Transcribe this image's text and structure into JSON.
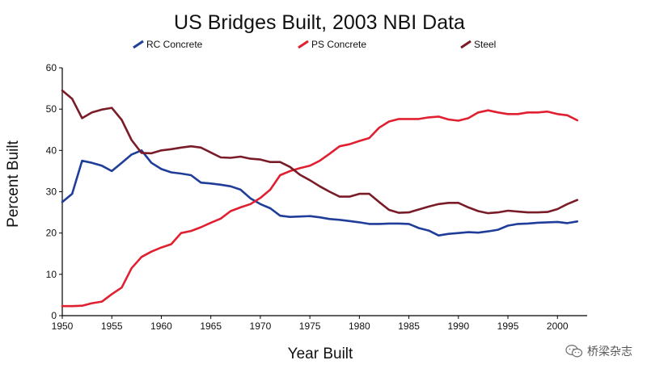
{
  "chart_data": {
    "type": "line",
    "title": "US Bridges Built, 2003 NBI Data",
    "xlabel": "Year Built",
    "ylabel": "Percent Built",
    "xlim": [
      1950,
      2003
    ],
    "ylim": [
      0,
      60
    ],
    "xticks": [
      1950,
      1955,
      1960,
      1965,
      1970,
      1975,
      1980,
      1985,
      1990,
      1995,
      2000
    ],
    "yticks": [
      0,
      10,
      20,
      30,
      40,
      50,
      60
    ],
    "legend_position": "top",
    "series": [
      {
        "name": "RC Concrete",
        "color": "#1f3d99",
        "x": [
          1950,
          1951,
          1952,
          1953,
          1954,
          1955,
          1956,
          1957,
          1958,
          1959,
          1960,
          1961,
          1962,
          1963,
          1964,
          1965,
          1966,
          1967,
          1968,
          1969,
          1970,
          1971,
          1972,
          1973,
          1974,
          1975,
          1976,
          1977,
          1978,
          1979,
          1980,
          1981,
          1982,
          1983,
          1984,
          1985,
          1986,
          1987,
          1988,
          1989,
          1990,
          1991,
          1992,
          1993,
          1994,
          1995,
          1996,
          1997,
          1998,
          1999,
          2000,
          2001,
          2002
        ],
        "values": [
          27.5,
          29.5,
          37.5,
          37,
          36.3,
          35,
          37,
          39,
          40,
          37,
          35.5,
          34.7,
          34.4,
          34,
          32.2,
          32,
          31.7,
          31.3,
          30.5,
          28.4,
          27,
          26,
          24.2,
          23.9,
          24,
          24.1,
          23.8,
          23.4,
          23.2,
          22.9,
          22.6,
          22.2,
          22.2,
          22.3,
          22.3,
          22.2,
          21.2,
          20.6,
          19.4,
          19.8,
          20,
          20.2,
          20.1,
          20.4,
          20.8,
          21.8,
          22.2,
          22.3,
          22.5,
          22.6,
          22.7,
          22.4,
          22.8
        ]
      },
      {
        "name": "PS Concrete",
        "color": "#e02030",
        "x": [
          1950,
          1951,
          1952,
          1953,
          1954,
          1955,
          1956,
          1957,
          1958,
          1959,
          1960,
          1961,
          1962,
          1963,
          1964,
          1965,
          1966,
          1967,
          1968,
          1969,
          1970,
          1971,
          1972,
          1973,
          1974,
          1975,
          1976,
          1977,
          1978,
          1979,
          1980,
          1981,
          1982,
          1983,
          1984,
          1985,
          1986,
          1987,
          1988,
          1989,
          1990,
          1991,
          1992,
          1993,
          1994,
          1995,
          1996,
          1997,
          1998,
          1999,
          2000,
          2001,
          2002
        ],
        "values": [
          2.3,
          2.3,
          2.4,
          3,
          3.4,
          5.2,
          6.8,
          11.5,
          14.2,
          15.5,
          16.5,
          17.3,
          20,
          20.5,
          21.4,
          22.5,
          23.5,
          25.3,
          26.2,
          27,
          28.5,
          30.5,
          34,
          35,
          35.7,
          36.3,
          37.5,
          39.2,
          41,
          41.5,
          42.3,
          43,
          45.5,
          47,
          47.6,
          47.6,
          47.6,
          48,
          48.2,
          47.5,
          47.2,
          47.8,
          49.2,
          49.7,
          49.2,
          48.8,
          48.8,
          49.2,
          49.2,
          49.4,
          48.8,
          48.5,
          47.3
        ]
      },
      {
        "name": "Steel",
        "color": "#7a1c28",
        "x": [
          1950,
          1951,
          1952,
          1953,
          1954,
          1955,
          1956,
          1957,
          1958,
          1959,
          1960,
          1961,
          1962,
          1963,
          1964,
          1965,
          1966,
          1967,
          1968,
          1969,
          1970,
          1971,
          1972,
          1973,
          1974,
          1975,
          1976,
          1977,
          1978,
          1979,
          1980,
          1981,
          1982,
          1983,
          1984,
          1985,
          1986,
          1987,
          1988,
          1989,
          1990,
          1991,
          1992,
          1993,
          1994,
          1995,
          1996,
          1997,
          1998,
          1999,
          2000,
          2001,
          2002
        ],
        "values": [
          54.5,
          52.5,
          47.8,
          49.2,
          49.9,
          50.3,
          47.4,
          42.5,
          39.4,
          39.3,
          40,
          40.3,
          40.7,
          41,
          40.7,
          39.5,
          38.3,
          38.2,
          38.5,
          38,
          37.8,
          37.2,
          37.2,
          36,
          34.1,
          32.8,
          31.3,
          30,
          28.8,
          28.8,
          29.5,
          29.5,
          27.5,
          25.6,
          24.9,
          25,
          25.7,
          26.4,
          27,
          27.3,
          27.3,
          26.2,
          25.3,
          24.8,
          25,
          25.4,
          25.2,
          25,
          25,
          25.1,
          25.8,
          27,
          28
        ]
      }
    ]
  },
  "watermark": {
    "text": "桥梁杂志",
    "icon": "wechat-icon"
  }
}
